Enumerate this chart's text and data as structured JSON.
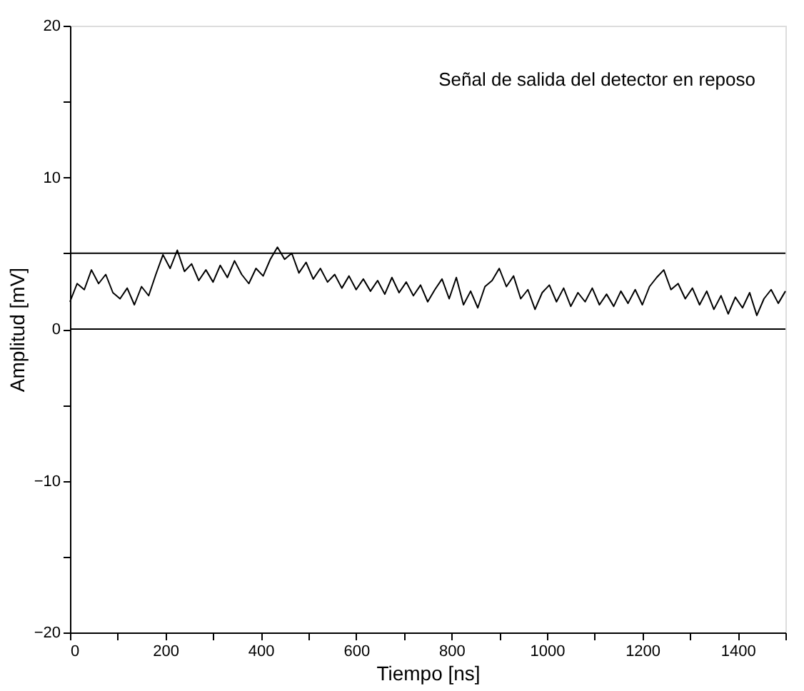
{
  "chart_data": {
    "type": "line",
    "xlabel": "Tiempo [ns]",
    "ylabel": "Amplitud [mV]",
    "annotations": [
      "Señal de salida del detector en reposo"
    ],
    "xlim": [
      0,
      1500
    ],
    "ylim": [
      -20,
      20
    ],
    "xticks": [
      0,
      {
        "value": 100,
        "label": null
      },
      200,
      {
        "value": 300,
        "label": null
      },
      400,
      {
        "value": 500,
        "label": null
      },
      600,
      {
        "value": 700,
        "label": null
      },
      800,
      {
        "value": 900,
        "label": null
      },
      1000,
      {
        "value": 1100,
        "label": null
      },
      1200,
      {
        "value": 1300,
        "label": null
      },
      1400,
      {
        "value": 1500,
        "label": null
      }
    ],
    "yticks": [
      -20,
      {
        "value": -15,
        "label": null
      },
      -10,
      {
        "value": -5,
        "label": null
      },
      0,
      {
        "value": 5,
        "label": null
      },
      10,
      {
        "value": 15,
        "label": null
      },
      20
    ],
    "grid": false,
    "marker": "none",
    "line_style": "solid",
    "ref_lines": [
      {
        "axis": "y",
        "value": 5,
        "label": null,
        "color": "#000000"
      },
      {
        "axis": "y",
        "value": 0,
        "label": null,
        "color": "#000000"
      }
    ],
    "series": [
      {
        "color": "#000000",
        "x": [
          0,
          15,
          30,
          45,
          60,
          75,
          90,
          105,
          120,
          135,
          150,
          165,
          180,
          195,
          210,
          225,
          240,
          255,
          270,
          285,
          300,
          315,
          330,
          345,
          360,
          375,
          390,
          405,
          420,
          435,
          450,
          465,
          480,
          495,
          510,
          525,
          540,
          555,
          570,
          585,
          600,
          615,
          630,
          645,
          660,
          675,
          690,
          705,
          720,
          735,
          750,
          765,
          780,
          795,
          810,
          825,
          840,
          855,
          870,
          885,
          900,
          915,
          930,
          945,
          960,
          975,
          990,
          1005,
          1020,
          1035,
          1050,
          1065,
          1080,
          1095,
          1110,
          1125,
          1140,
          1155,
          1170,
          1185,
          1200,
          1215,
          1230,
          1245,
          1260,
          1275,
          1290,
          1305,
          1320,
          1335,
          1350,
          1365,
          1380,
          1395,
          1410,
          1425,
          1440,
          1455,
          1470,
          1485,
          1500
        ],
        "values": [
          1.8,
          3.0,
          2.6,
          3.9,
          3.0,
          3.6,
          2.4,
          2.0,
          2.7,
          1.6,
          2.8,
          2.2,
          3.6,
          4.9,
          4.0,
          5.2,
          3.8,
          4.3,
          3.2,
          3.9,
          3.1,
          4.2,
          3.4,
          4.5,
          3.6,
          3.0,
          4.0,
          3.5,
          4.6,
          5.4,
          4.6,
          5.0,
          3.7,
          4.4,
          3.3,
          4.0,
          3.1,
          3.6,
          2.7,
          3.5,
          2.6,
          3.3,
          2.5,
          3.2,
          2.3,
          3.4,
          2.4,
          3.1,
          2.2,
          2.9,
          1.8,
          2.6,
          3.3,
          2.0,
          3.4,
          1.6,
          2.5,
          1.4,
          2.8,
          3.2,
          4.0,
          2.8,
          3.5,
          2.0,
          2.6,
          1.3,
          2.4,
          2.9,
          1.8,
          2.7,
          1.5,
          2.4,
          1.8,
          2.7,
          1.6,
          2.3,
          1.5,
          2.5,
          1.7,
          2.6,
          1.6,
          2.8,
          3.4,
          3.9,
          2.6,
          3.0,
          2.0,
          2.7,
          1.6,
          2.5,
          1.3,
          2.2,
          1.0,
          2.1,
          1.4,
          2.4,
          0.9,
          2.0,
          2.6,
          1.7,
          2.5
        ]
      }
    ]
  }
}
